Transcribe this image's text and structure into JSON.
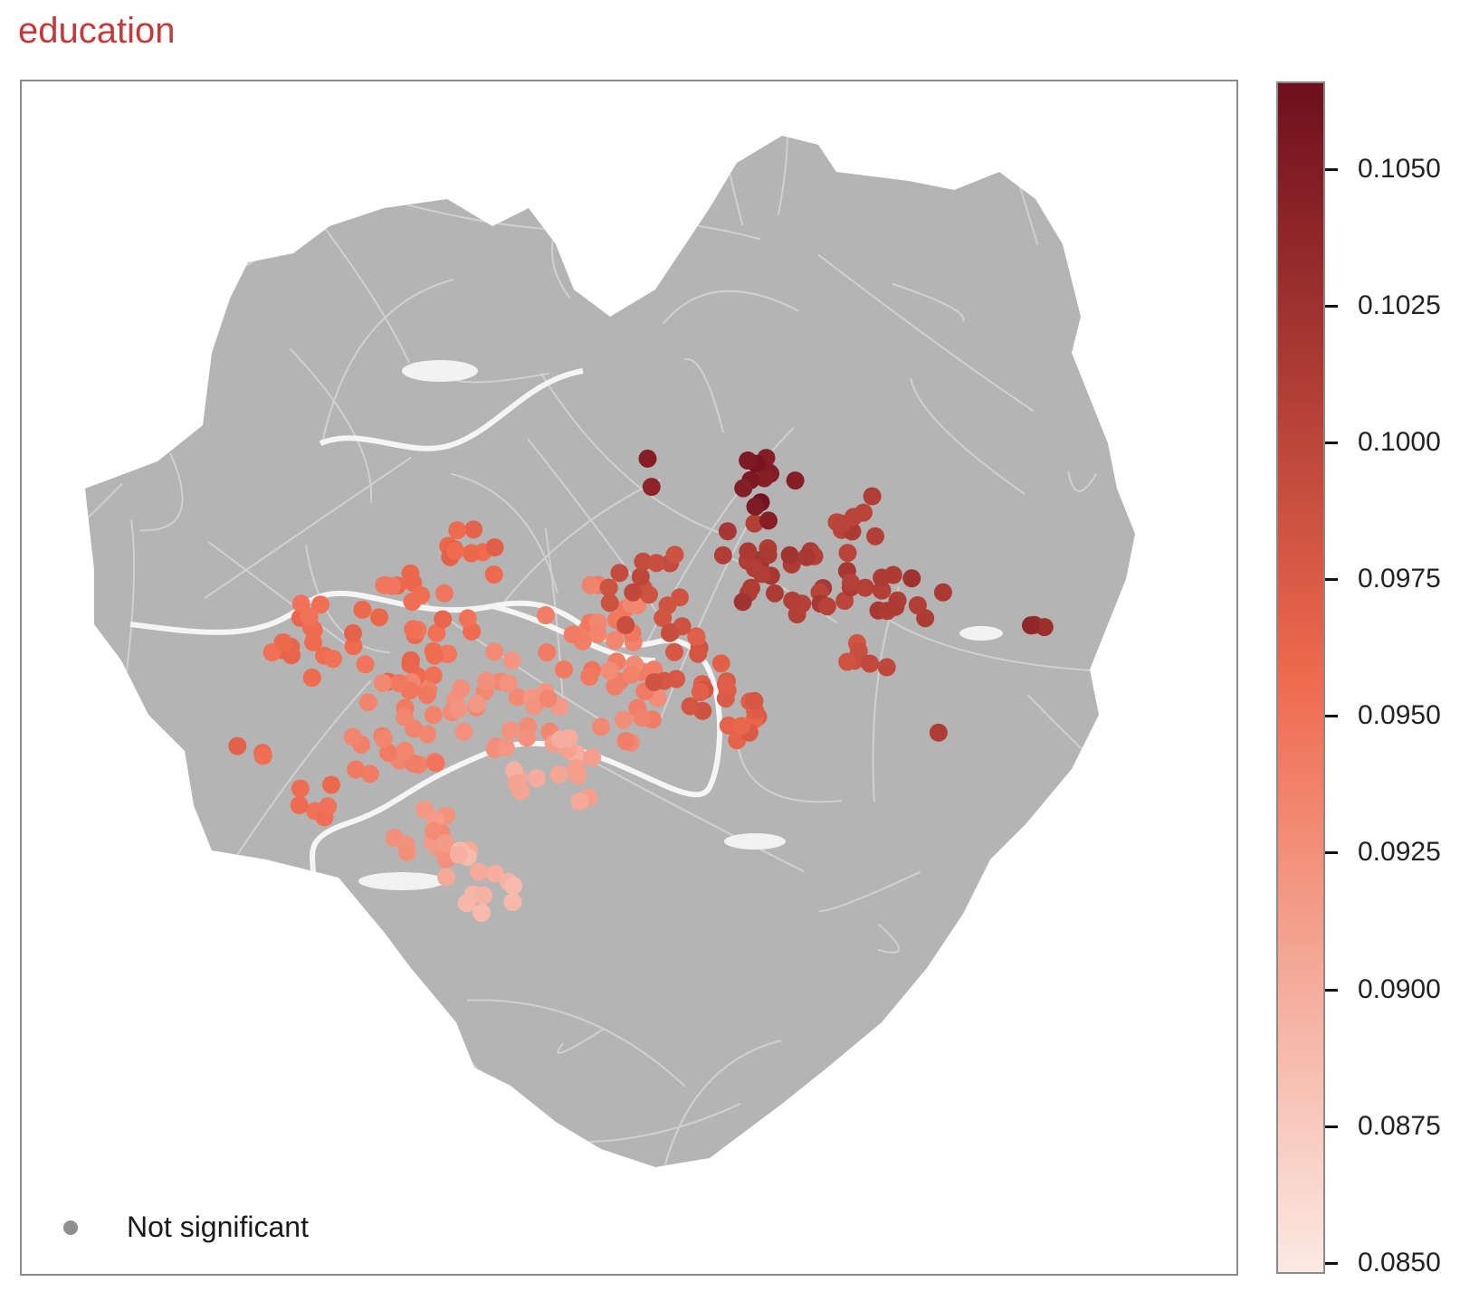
{
  "title": "education",
  "legend": {
    "label": "Not significant",
    "color": "#8e8e8e"
  },
  "colors": {
    "not_significant": "#8e8e8e",
    "low": "#fbe9e3",
    "mid": "#ef6a4e",
    "high": "#6e0f1c",
    "region_fill": "#b4b4b4",
    "roads": "#d3d3d3",
    "water": "#f2f2f2"
  },
  "chart_data": {
    "type": "scatter",
    "description_free": true,
    "colorbar": {
      "min": 0.0848,
      "max": 0.1066,
      "ticks": [
        "0.0850",
        "0.0875",
        "0.0900",
        "0.0925",
        "0.0950",
        "0.0975",
        "0.1000",
        "0.1025",
        "0.1050"
      ],
      "tick_values": [
        0.085,
        0.0875,
        0.09,
        0.0925,
        0.095,
        0.0975,
        0.1,
        0.1025,
        0.105
      ]
    },
    "clusters": [
      {
        "lon": 0.19,
        "lat": 0.56,
        "value": 0.096,
        "count": 3
      },
      {
        "lon": 0.24,
        "lat": 0.47,
        "value": 0.0958,
        "count": 18
      },
      {
        "lon": 0.24,
        "lat": 0.6,
        "value": 0.0952,
        "count": 6
      },
      {
        "lon": 0.32,
        "lat": 0.46,
        "value": 0.0955,
        "count": 28
      },
      {
        "lon": 0.31,
        "lat": 0.55,
        "value": 0.094,
        "count": 25
      },
      {
        "lon": 0.33,
        "lat": 0.63,
        "value": 0.0922,
        "count": 14
      },
      {
        "lon": 0.37,
        "lat": 0.4,
        "value": 0.0962,
        "count": 10
      },
      {
        "lon": 0.4,
        "lat": 0.52,
        "value": 0.0925,
        "count": 26
      },
      {
        "lon": 0.38,
        "lat": 0.67,
        "value": 0.0895,
        "count": 14
      },
      {
        "lon": 0.44,
        "lat": 0.58,
        "value": 0.0905,
        "count": 16
      },
      {
        "lon": 0.47,
        "lat": 0.46,
        "value": 0.094,
        "count": 22
      },
      {
        "lon": 0.5,
        "lat": 0.52,
        "value": 0.0935,
        "count": 16
      },
      {
        "lon": 0.52,
        "lat": 0.43,
        "value": 0.099,
        "count": 18
      },
      {
        "lon": 0.55,
        "lat": 0.5,
        "value": 0.0978,
        "count": 16
      },
      {
        "lon": 0.58,
        "lat": 0.53,
        "value": 0.097,
        "count": 12
      },
      {
        "lon": 0.6,
        "lat": 0.4,
        "value": 0.1015,
        "count": 18
      },
      {
        "lon": 0.61,
        "lat": 0.34,
        "value": 0.1055,
        "count": 12
      },
      {
        "lon": 0.66,
        "lat": 0.42,
        "value": 0.101,
        "count": 16
      },
      {
        "lon": 0.69,
        "lat": 0.37,
        "value": 0.1005,
        "count": 8
      },
      {
        "lon": 0.73,
        "lat": 0.43,
        "value": 0.1015,
        "count": 12
      },
      {
        "lon": 0.7,
        "lat": 0.48,
        "value": 0.099,
        "count": 6
      },
      {
        "lon": 0.52,
        "lat": 0.33,
        "value": 0.104,
        "count": 2
      },
      {
        "lon": 0.76,
        "lat": 0.55,
        "value": 0.101,
        "count": 1
      },
      {
        "lon": 0.83,
        "lat": 0.45,
        "value": 0.103,
        "count": 3
      }
    ]
  }
}
